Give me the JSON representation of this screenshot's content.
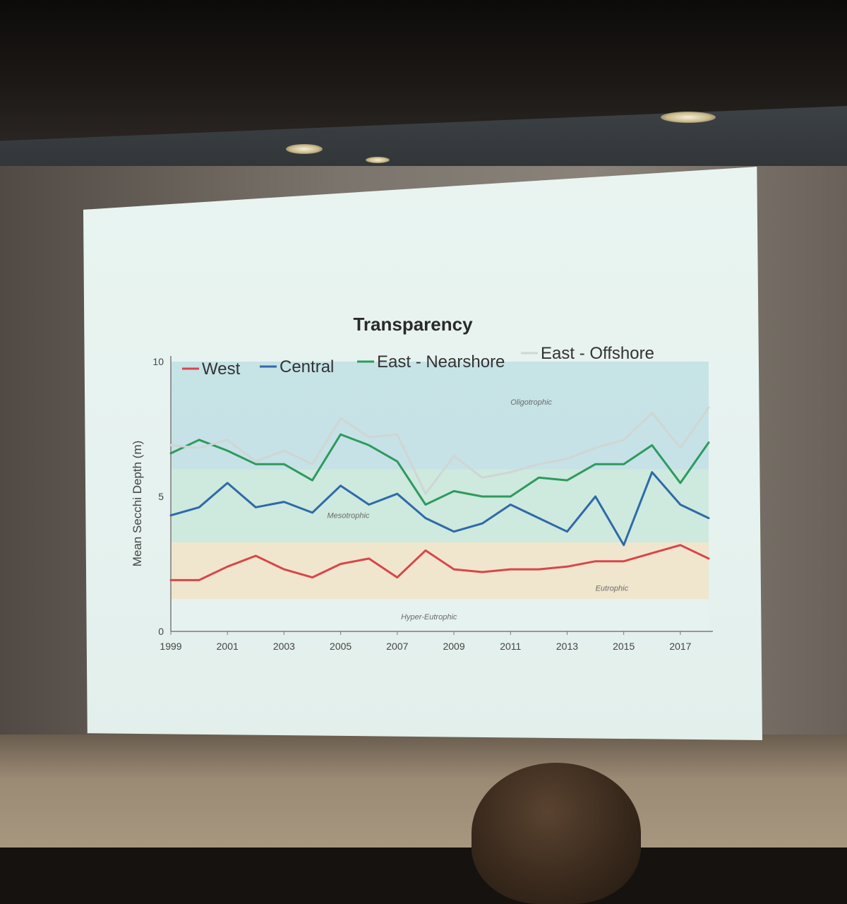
{
  "chart_data": {
    "type": "line",
    "title": "Transparency",
    "xlabel": "",
    "ylabel": "Mean Secchi Depth (m)",
    "ylim": [
      0,
      10
    ],
    "yticks": [
      "0",
      "5",
      "10"
    ],
    "xlim": [
      1999,
      2018
    ],
    "xticks": [
      "1999",
      "2001",
      "2003",
      "2005",
      "2007",
      "2009",
      "2011",
      "2013",
      "2015",
      "2017"
    ],
    "legend_position": "top",
    "x": [
      1999,
      2000,
      2001,
      2002,
      2003,
      2004,
      2005,
      2006,
      2007,
      2008,
      2009,
      2010,
      2011,
      2012,
      2013,
      2014,
      2015,
      2016,
      2017,
      2018
    ],
    "series": [
      {
        "name": "West",
        "color": "#d9454b",
        "values": [
          1.9,
          1.9,
          2.4,
          2.8,
          2.3,
          2.0,
          2.5,
          2.7,
          2.0,
          3.0,
          2.3,
          2.2,
          2.3,
          2.3,
          2.4,
          2.6,
          2.6,
          2.9,
          3.2,
          2.7
        ]
      },
      {
        "name": "Central",
        "color": "#2f6aa8",
        "values": [
          4.3,
          4.6,
          5.5,
          4.6,
          4.8,
          4.4,
          5.4,
          4.7,
          5.1,
          4.2,
          3.7,
          4.0,
          4.7,
          4.2,
          3.7,
          5.0,
          3.2,
          5.9,
          4.7,
          4.2
        ]
      },
      {
        "name": "East - Nearshore",
        "color": "#2e9a5e",
        "values": [
          6.6,
          7.1,
          6.7,
          6.2,
          6.2,
          5.6,
          7.3,
          6.9,
          6.3,
          4.7,
          5.2,
          5.0,
          5.0,
          5.7,
          5.6,
          6.2,
          6.2,
          6.9,
          5.5,
          7.0
        ]
      },
      {
        "name": "East - Offshore",
        "color": "#cfd6d4",
        "values": [
          6.9,
          6.8,
          7.1,
          6.3,
          6.7,
          6.2,
          7.9,
          7.2,
          7.3,
          5.1,
          6.5,
          5.7,
          5.9,
          6.2,
          6.4,
          6.8,
          7.1,
          8.1,
          6.8,
          8.3
        ]
      }
    ],
    "zones": [
      {
        "label": "Oligotrophic",
        "from": 6.0,
        "to": 10.0,
        "color": "#bfdfe4"
      },
      {
        "label": "Mesotrophic",
        "from": 3.3,
        "to": 6.0,
        "color": "#c9e8da"
      },
      {
        "label": "Eutrophic",
        "from": 1.2,
        "to": 3.3,
        "color": "#f2e4c7"
      },
      {
        "label": "Hyper-Eutrophic",
        "from": 0.0,
        "to": 1.2,
        "color": "#e6f2ef"
      }
    ]
  }
}
